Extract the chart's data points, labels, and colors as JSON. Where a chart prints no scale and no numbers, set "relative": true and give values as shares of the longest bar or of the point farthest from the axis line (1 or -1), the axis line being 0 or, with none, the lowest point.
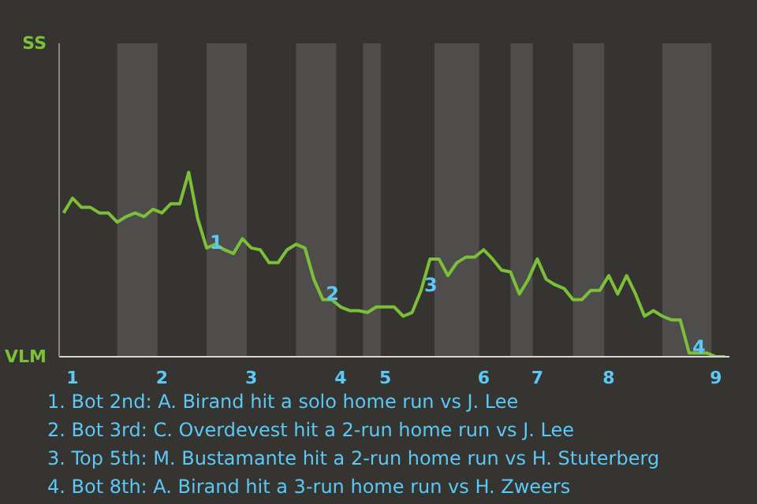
{
  "chart_data": {
    "type": "line",
    "categories": [
      null,
      "1",
      null,
      null,
      null,
      null,
      null,
      null,
      null,
      null,
      null,
      "2",
      null,
      null,
      null,
      null,
      null,
      null,
      null,
      null,
      null,
      "3",
      null,
      null,
      null,
      null,
      null,
      null,
      null,
      null,
      null,
      "4",
      null,
      null,
      null,
      null,
      "5",
      null,
      null,
      null,
      null,
      null,
      null,
      null,
      null,
      null,
      null,
      "6",
      null,
      null,
      null,
      null,
      null,
      "7",
      null,
      null,
      null,
      null,
      null,
      null,
      null,
      "8",
      null,
      null,
      null,
      null,
      null,
      null,
      null,
      null,
      null,
      null,
      null,
      "9",
      null
    ],
    "relative": true,
    "series": [
      {
        "color": "#7cc03a",
        "values": [
          0.78,
          0.86,
          0.81,
          0.81,
          0.78,
          0.78,
          0.73,
          0.76,
          0.78,
          0.76,
          0.8,
          0.78,
          0.83,
          0.83,
          1,
          0.75,
          0.59,
          0.61,
          0.58,
          0.56,
          0.64,
          0.59,
          0.58,
          0.51,
          0.51,
          0.58,
          0.61,
          0.59,
          0.42,
          0.31,
          0.31,
          0.27,
          0.25,
          0.25,
          0.24,
          0.27,
          0.27,
          0.27,
          0.22,
          0.24,
          0.36,
          0.53,
          0.53,
          0.44,
          0.51,
          0.54,
          0.54,
          0.58,
          0.53,
          0.47,
          0.46,
          0.34,
          0.42,
          0.53,
          0.42,
          0.39,
          0.37,
          0.31,
          0.31,
          0.36,
          0.36,
          0.44,
          0.34,
          0.44,
          0.34,
          0.22,
          0.25,
          0.22,
          0.2,
          0.2,
          0.02,
          0.02,
          0.02,
          0,
          0
        ]
      }
    ],
    "annotations": [
      {
        "text": "1",
        "y": 0.59
      },
      {
        "text": "2",
        "y": 0.31
      },
      {
        "text": "3",
        "y": 0.36
      },
      {
        "text": "4",
        "y": 0.02
      },
      "SS",
      "VLM",
      "1. Bot 2nd: A. Birand hit a solo home run vs J. Lee",
      "2. Bot 3rd: C. Overdevest hit a 2-run home run vs J. Lee",
      "3. Top 5th: M. Bustamante hit a 2-run home run vs H. Stuterberg",
      "4. Bot 8th: A. Birand hit a 3-run home run vs H. Zweers"
    ]
  }
}
